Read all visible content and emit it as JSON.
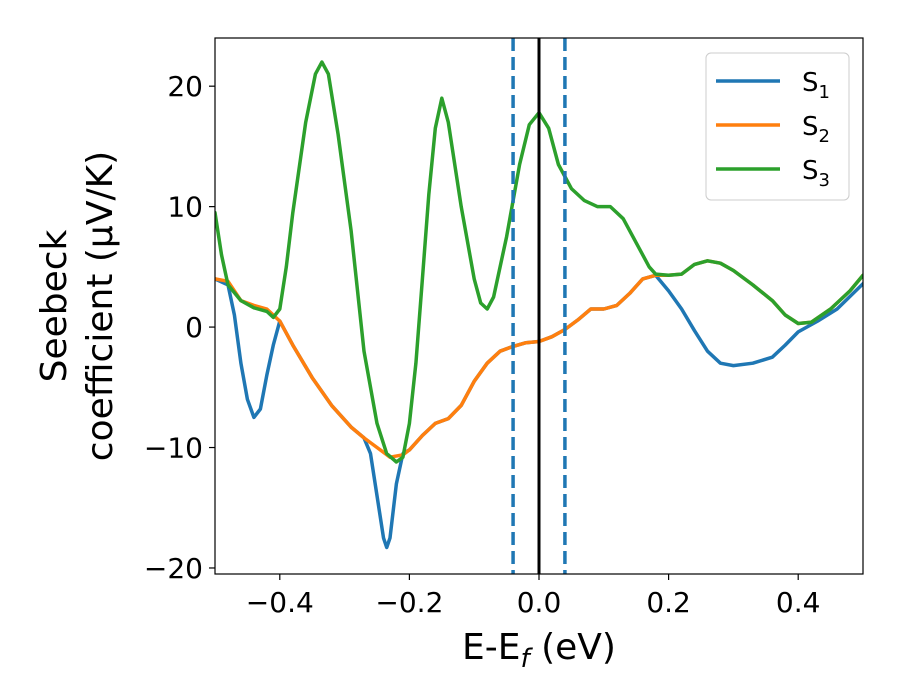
{
  "chart_data": {
    "type": "line",
    "xlabel": {
      "base": "E-E",
      "sub": "f",
      "unit": " (eV)"
    },
    "ylabel": {
      "line1": "Seebeck",
      "line2": "coefficient  (μV/K)"
    },
    "xlim": [
      -0.5,
      0.5
    ],
    "ylim": [
      -20.5,
      24
    ],
    "xticks": [
      -0.4,
      -0.2,
      0.0,
      0.2,
      0.4
    ],
    "xtick_labels": [
      "−0.4",
      "−0.2",
      "0.0",
      "0.2",
      "0.4"
    ],
    "yticks": [
      -20,
      -10,
      0,
      10,
      20
    ],
    "ytick_labels": [
      "−20",
      "−10",
      "0",
      "10",
      "20"
    ],
    "grid": false,
    "legend_position": "top-right",
    "vlines": [
      {
        "x": -0.04,
        "style": "dashed",
        "color": "#1f77b4"
      },
      {
        "x": 0.0,
        "style": "solid",
        "color": "#000000"
      },
      {
        "x": 0.04,
        "style": "dashed",
        "color": "#1f77b4"
      }
    ],
    "series": [
      {
        "name": {
          "base": "S",
          "sub": "1"
        },
        "color": "#1f77b4",
        "points": [
          [
            -0.5,
            4
          ],
          [
            -0.48,
            3.5
          ],
          [
            -0.47,
            1
          ],
          [
            -0.46,
            -3
          ],
          [
            -0.45,
            -6
          ],
          [
            -0.44,
            -7.5
          ],
          [
            -0.43,
            -6.8
          ],
          [
            -0.42,
            -4
          ],
          [
            -0.41,
            -1.5
          ],
          [
            -0.4,
            0.5
          ],
          [
            -0.38,
            -1.5
          ],
          [
            -0.35,
            -4.2
          ],
          [
            -0.32,
            -6.5
          ],
          [
            -0.29,
            -8.3
          ],
          [
            -0.27,
            -9.2
          ],
          [
            -0.26,
            -10.5
          ],
          [
            -0.25,
            -14
          ],
          [
            -0.24,
            -17.5
          ],
          [
            -0.235,
            -18.3
          ],
          [
            -0.23,
            -17.5
          ],
          [
            -0.22,
            -13
          ],
          [
            -0.21,
            -10.5
          ],
          [
            -0.2,
            -10.2
          ],
          [
            -0.18,
            -9
          ],
          [
            -0.16,
            -8
          ],
          [
            -0.14,
            -7.6
          ],
          [
            -0.12,
            -6.5
          ],
          [
            -0.1,
            -4.5
          ],
          [
            -0.08,
            -3
          ],
          [
            -0.06,
            -2
          ],
          [
            -0.04,
            -1.6
          ],
          [
            -0.02,
            -1.3
          ],
          [
            0.0,
            -1.2
          ],
          [
            0.02,
            -0.8
          ],
          [
            0.04,
            -0.2
          ],
          [
            0.06,
            0.6
          ],
          [
            0.08,
            1.5
          ],
          [
            0.1,
            1.5
          ],
          [
            0.12,
            1.8
          ],
          [
            0.14,
            2.8
          ],
          [
            0.16,
            4
          ],
          [
            0.18,
            4.3
          ],
          [
            0.2,
            3
          ],
          [
            0.22,
            1.5
          ],
          [
            0.24,
            -0.3
          ],
          [
            0.26,
            -2
          ],
          [
            0.28,
            -3
          ],
          [
            0.3,
            -3.2
          ],
          [
            0.33,
            -3
          ],
          [
            0.36,
            -2.5
          ],
          [
            0.38,
            -1.5
          ],
          [
            0.4,
            -0.4
          ],
          [
            0.43,
            0.5
          ],
          [
            0.46,
            1.5
          ],
          [
            0.5,
            3.6
          ]
        ]
      },
      {
        "name": {
          "base": "S",
          "sub": "2"
        },
        "color": "#ff7f0e",
        "points": [
          [
            -0.5,
            4
          ],
          [
            -0.48,
            3.8
          ],
          [
            -0.46,
            2.2
          ],
          [
            -0.44,
            1.8
          ],
          [
            -0.42,
            1.5
          ],
          [
            -0.4,
            0.5
          ],
          [
            -0.38,
            -1.5
          ],
          [
            -0.35,
            -4.2
          ],
          [
            -0.32,
            -6.5
          ],
          [
            -0.29,
            -8.3
          ],
          [
            -0.27,
            -9.2
          ],
          [
            -0.25,
            -10
          ],
          [
            -0.23,
            -10.8
          ],
          [
            -0.21,
            -10.6
          ],
          [
            -0.2,
            -10.2
          ],
          [
            -0.18,
            -9
          ],
          [
            -0.16,
            -8
          ],
          [
            -0.14,
            -7.6
          ],
          [
            -0.12,
            -6.5
          ],
          [
            -0.1,
            -4.5
          ],
          [
            -0.08,
            -3
          ],
          [
            -0.06,
            -2
          ],
          [
            -0.04,
            -1.6
          ],
          [
            -0.02,
            -1.3
          ],
          [
            0.0,
            -1.2
          ],
          [
            0.02,
            -0.8
          ],
          [
            0.04,
            -0.2
          ],
          [
            0.06,
            0.6
          ],
          [
            0.08,
            1.5
          ],
          [
            0.1,
            1.5
          ],
          [
            0.12,
            1.8
          ],
          [
            0.14,
            2.8
          ],
          [
            0.16,
            4
          ],
          [
            0.18,
            4.3
          ],
          [
            0.2,
            4.3
          ],
          [
            0.22,
            4.4
          ],
          [
            0.24,
            5.2
          ],
          [
            0.26,
            5.5
          ],
          [
            0.28,
            5.3
          ],
          [
            0.3,
            4.7
          ],
          [
            0.33,
            3.5
          ],
          [
            0.36,
            2.2
          ],
          [
            0.38,
            1
          ],
          [
            0.4,
            0.3
          ],
          [
            0.42,
            0.4
          ],
          [
            0.45,
            1.5
          ],
          [
            0.48,
            3
          ],
          [
            0.5,
            4.3
          ]
        ]
      },
      {
        "name": {
          "base": "S",
          "sub": "3"
        },
        "color": "#2ca02c",
        "points": [
          [
            -0.5,
            9.5
          ],
          [
            -0.49,
            6
          ],
          [
            -0.48,
            3.5
          ],
          [
            -0.46,
            2.2
          ],
          [
            -0.44,
            1.6
          ],
          [
            -0.42,
            1.3
          ],
          [
            -0.41,
            0.8
          ],
          [
            -0.4,
            1.5
          ],
          [
            -0.39,
            5
          ],
          [
            -0.38,
            9.5
          ],
          [
            -0.36,
            17
          ],
          [
            -0.345,
            21
          ],
          [
            -0.335,
            22
          ],
          [
            -0.325,
            21
          ],
          [
            -0.31,
            16
          ],
          [
            -0.29,
            8
          ],
          [
            -0.27,
            -2
          ],
          [
            -0.25,
            -8
          ],
          [
            -0.235,
            -10.5
          ],
          [
            -0.22,
            -11.2
          ],
          [
            -0.21,
            -10.8
          ],
          [
            -0.2,
            -8
          ],
          [
            -0.19,
            -3
          ],
          [
            -0.18,
            4
          ],
          [
            -0.17,
            11
          ],
          [
            -0.16,
            16.5
          ],
          [
            -0.15,
            19
          ],
          [
            -0.14,
            17
          ],
          [
            -0.12,
            10
          ],
          [
            -0.1,
            4
          ],
          [
            -0.09,
            2
          ],
          [
            -0.08,
            1.5
          ],
          [
            -0.07,
            2.5
          ],
          [
            -0.05,
            7.5
          ],
          [
            -0.03,
            13.5
          ],
          [
            -0.015,
            16.8
          ],
          [
            0.0,
            17.8
          ],
          [
            0.015,
            16.5
          ],
          [
            0.03,
            13.5
          ],
          [
            0.05,
            11.5
          ],
          [
            0.07,
            10.5
          ],
          [
            0.09,
            10
          ],
          [
            0.11,
            10
          ],
          [
            0.13,
            9
          ],
          [
            0.15,
            7
          ],
          [
            0.17,
            5
          ],
          [
            0.18,
            4.4
          ],
          [
            0.2,
            4.3
          ],
          [
            0.22,
            4.4
          ],
          [
            0.24,
            5.2
          ],
          [
            0.26,
            5.5
          ],
          [
            0.28,
            5.3
          ],
          [
            0.3,
            4.7
          ],
          [
            0.33,
            3.5
          ],
          [
            0.36,
            2.2
          ],
          [
            0.38,
            1
          ],
          [
            0.4,
            0.3
          ],
          [
            0.42,
            0.4
          ],
          [
            0.45,
            1.5
          ],
          [
            0.48,
            3
          ],
          [
            0.5,
            4.3
          ]
        ]
      }
    ]
  }
}
